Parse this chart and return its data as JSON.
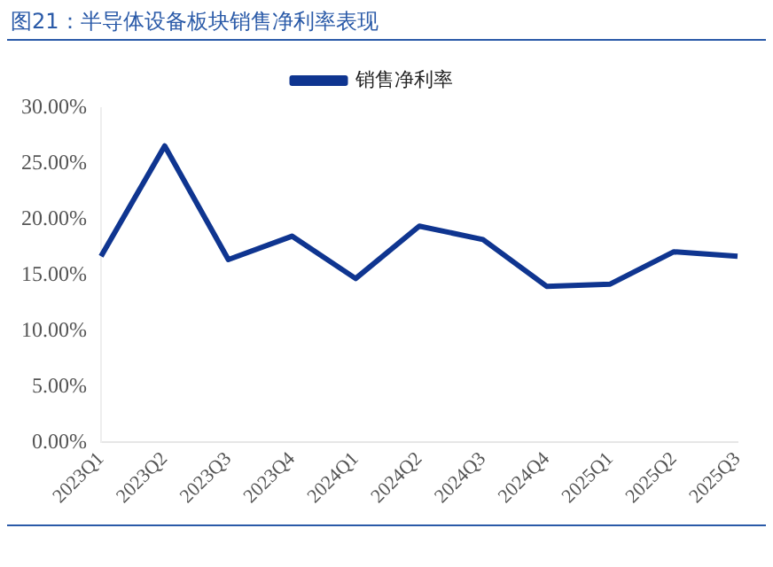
{
  "chart_data": {
    "type": "line",
    "title": "图21：半导体设备板块销售净利率表现",
    "categories": [
      "2023Q1",
      "2023Q2",
      "2023Q3",
      "2023Q4",
      "2024Q1",
      "2024Q2",
      "2024Q3",
      "2024Q4",
      "2025Q1",
      "2025Q2",
      "2025Q3"
    ],
    "series": [
      {
        "name": "销售净利率",
        "color": "#0f3590",
        "values": [
          16.7,
          26.6,
          16.4,
          18.5,
          14.7,
          19.4,
          18.2,
          14.0,
          14.2,
          17.1,
          16.7
        ]
      }
    ],
    "ylim": [
      0,
      30
    ],
    "yticks": [
      {
        "value": 0,
        "label": "0.00%"
      },
      {
        "value": 5,
        "label": "5.00%"
      },
      {
        "value": 10,
        "label": "10.00%"
      },
      {
        "value": 15,
        "label": "15.00%"
      },
      {
        "value": 20,
        "label": "20.00%"
      },
      {
        "value": 25,
        "label": "25.00%"
      },
      {
        "value": 30,
        "label": "30.00%"
      }
    ],
    "grid": false,
    "legend": "top",
    "marker": "none",
    "line_style": "solid"
  }
}
